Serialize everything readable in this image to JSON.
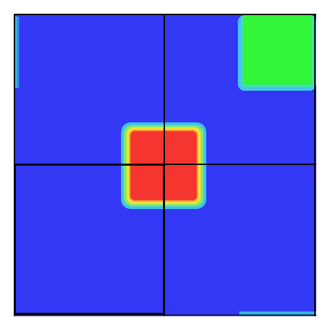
{
  "board": {
    "description_colors": {
      "background": "#3338F5",
      "cool_edge": "#2FB6E8",
      "warm_core": "#F53630",
      "warm_glow_outer": "#3FD0E0",
      "warm_glow_mid": "#9FEA3E",
      "warm_glow_inner": "#F0E23A",
      "green_block": "#33F53A",
      "green_glow": "#46D8D8",
      "grid_line": "#000000",
      "selection_border": "#000000"
    },
    "grid": {
      "rows": 2,
      "cols": 2
    },
    "selected_cell": {
      "row": 1,
      "col": 0
    }
  }
}
